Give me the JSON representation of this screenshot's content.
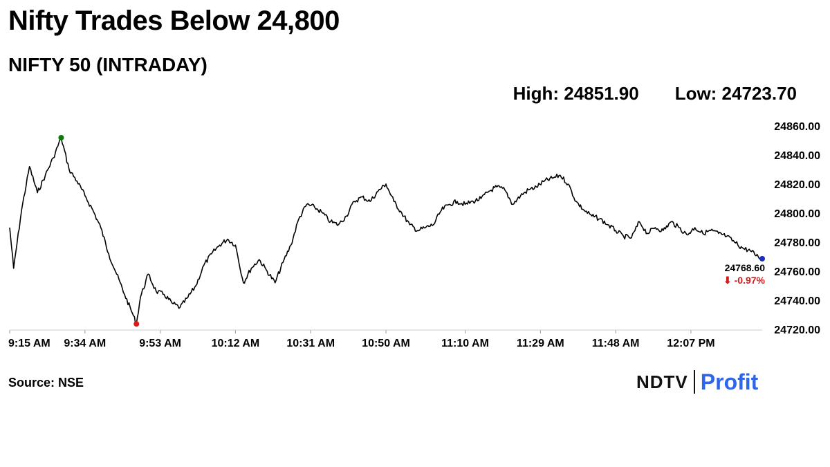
{
  "headline": "Nifty Trades Below 24,800",
  "subtitle": "NIFTY 50 (INTRADAY)",
  "high_label": "High: 24851.90",
  "low_label": "Low: 24723.70",
  "source": "Source: NSE",
  "logo": {
    "left": "NDTV",
    "right": "Profit"
  },
  "colors": {
    "line": "#000000",
    "high_dot": "#0a7a0a",
    "low_dot": "#e01b1b",
    "last_dot": "#1a2fbf",
    "change": "#d41a1a",
    "brand": "#2f66e8"
  },
  "chart_data": {
    "type": "line",
    "title": "NIFTY 50 (INTRADAY)",
    "xlabel": "",
    "ylabel": "",
    "y_ticks": [
      "24860.00",
      "24840.00",
      "24820.00",
      "24800.00",
      "24780.00",
      "24760.00",
      "24740.00",
      "24720.00"
    ],
    "ylim": [
      24720,
      24860
    ],
    "x_ticks": [
      "9:15 AM",
      "9:34 AM",
      "9:53 AM",
      "10:12 AM",
      "10:31 AM",
      "10:50 AM",
      "11:10 AM",
      "11:29 AM",
      "11:48 AM",
      "12:07 PM"
    ],
    "grid": false,
    "high": {
      "time": "9:28 AM",
      "value": 24851.9
    },
    "low": {
      "time": "9:47 AM",
      "value": 24723.7
    },
    "last": {
      "time": "12:25 PM",
      "value": 24768.6,
      "label": "24768.60",
      "change": "⬇ -0.97%"
    },
    "series": [
      {
        "x": [
          "9:15 AM",
          "9:16 AM",
          "9:18 AM",
          "9:20 AM",
          "9:22 AM",
          "9:24 AM",
          "9:26 AM",
          "9:28 AM",
          "9:30 AM",
          "9:32 AM",
          "9:34 AM",
          "9:36 AM",
          "9:38 AM",
          "9:40 AM",
          "9:42 AM",
          "9:44 AM",
          "9:46 AM",
          "9:47 AM",
          "9:48 AM",
          "9:50 AM",
          "9:52 AM",
          "9:54 AM",
          "9:56 AM",
          "9:58 AM",
          "10:00 AM",
          "10:02 AM",
          "10:04 AM",
          "10:06 AM",
          "10:08 AM",
          "10:10 AM",
          "10:12 AM",
          "10:14 AM",
          "10:16 AM",
          "10:18 AM",
          "10:20 AM",
          "10:22 AM",
          "10:24 AM",
          "10:26 AM",
          "10:28 AM",
          "10:30 AM",
          "10:32 AM",
          "10:34 AM",
          "10:36 AM",
          "10:38 AM",
          "10:40 AM",
          "10:42 AM",
          "10:44 AM",
          "10:46 AM",
          "10:48 AM",
          "10:50 AM",
          "10:52 AM",
          "10:54 AM",
          "10:56 AM",
          "10:58 AM",
          "11:00 AM",
          "11:02 AM",
          "11:04 AM",
          "11:06 AM",
          "11:08 AM",
          "11:10 AM",
          "11:12 AM",
          "11:14 AM",
          "11:16 AM",
          "11:18 AM",
          "11:20 AM",
          "11:22 AM",
          "11:24 AM",
          "11:26 AM",
          "11:28 AM",
          "11:30 AM",
          "11:32 AM",
          "11:34 AM",
          "11:36 AM",
          "11:38 AM",
          "11:40 AM",
          "11:42 AM",
          "11:44 AM",
          "11:46 AM",
          "11:48 AM",
          "11:50 AM",
          "11:52 AM",
          "11:54 AM",
          "11:56 AM",
          "11:58 AM",
          "12:00 PM",
          "12:02 PM",
          "12:04 PM",
          "12:06 PM",
          "12:08 PM",
          "12:10 PM",
          "12:12 PM",
          "12:14 PM",
          "12:16 PM",
          "12:18 PM",
          "12:20 PM",
          "12:22 PM",
          "12:24 PM",
          "12:25 PM"
        ],
        "values": [
          24790,
          24762,
          24802,
          24832,
          24814,
          24826,
          24838,
          24851.9,
          24830,
          24822,
          24812,
          24802,
          24790,
          24772,
          24758,
          24744,
          24731,
          24723.7,
          24742,
          24758,
          24746,
          24744,
          24738,
          24735,
          24742,
          24750,
          24764,
          24772,
          24778,
          24782,
          24778,
          24752,
          24762,
          24768,
          24760,
          24752,
          24766,
          24778,
          24796,
          24806,
          24804,
          24800,
          24794,
          24792,
          24798,
          24808,
          24811,
          24808,
          24815,
          24820,
          24808,
          24800,
          24792,
          24788,
          24790,
          24792,
          24802,
          24806,
          24808,
          24806,
          24808,
          24810,
          24815,
          24818,
          24816,
          24806,
          24812,
          24816,
          24818,
          24822,
          24824,
          24826,
          24820,
          24808,
          24802,
          24798,
          24796,
          24792,
          24788,
          24784,
          24783,
          24794,
          24786,
          24790,
          24788,
          24794,
          24790,
          24785,
          24790,
          24786,
          24788,
          24786,
          24784,
          24780,
          24776,
          24774,
          24770,
          24768.6
        ]
      }
    ]
  }
}
